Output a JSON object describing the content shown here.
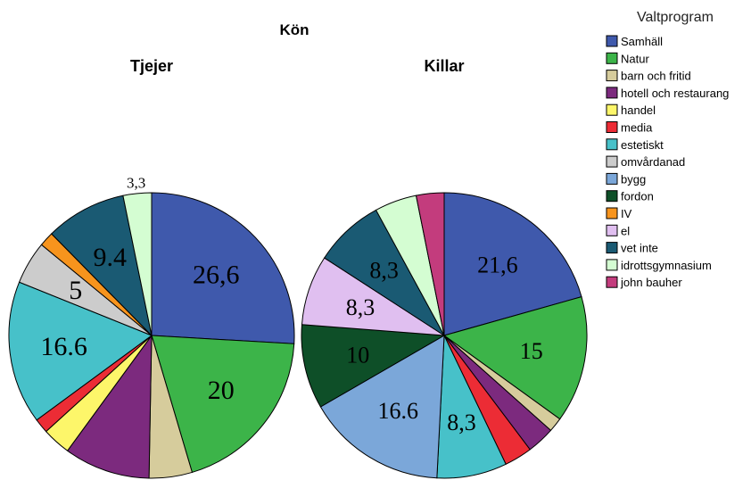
{
  "chart_data": {
    "type": "pie",
    "title": "Kön",
    "legend": {
      "title": "Valtprogram",
      "placement": "right",
      "entries": [
        {
          "name": "Samhäll",
          "color": "#3f59ac"
        },
        {
          "name": "Natur",
          "color": "#3cb449"
        },
        {
          "name": "barn och fritid",
          "color": "#d6cc9c"
        },
        {
          "name": "hotell och restaurang",
          "color": "#7c2a7e"
        },
        {
          "name": "handel",
          "color": "#fdf66a"
        },
        {
          "name": "media",
          "color": "#ec2c35"
        },
        {
          "name": "estetiskt",
          "color": "#47c1c9"
        },
        {
          "name": "omvårdanad",
          "color": "#cccccc"
        },
        {
          "name": "bygg",
          "color": "#7ba7d9"
        },
        {
          "name": "fordon",
          "color": "#0e4f28"
        },
        {
          "name": "IV",
          "color": "#f7941d"
        },
        {
          "name": "el",
          "color": "#e0bff0"
        },
        {
          "name": "vet inte",
          "color": "#1a5a73"
        },
        {
          "name": "idrottsgymnasium",
          "color": "#d4fdd2"
        },
        {
          "name": "john bauher",
          "color": "#c33c7d"
        }
      ]
    },
    "pies": [
      {
        "name": "Tjejer",
        "slices": [
          {
            "category": "Samhäll",
            "value": 26.6,
            "label": "26,6"
          },
          {
            "category": "Natur",
            "value": 20,
            "label": "20"
          },
          {
            "category": "barn och fritid",
            "value": 5,
            "label": ""
          },
          {
            "category": "hotell och restaurang",
            "value": 10,
            "label": ""
          },
          {
            "category": "handel",
            "value": 3.3,
            "label": ""
          },
          {
            "category": "media",
            "value": 1.7,
            "label": ""
          },
          {
            "category": "estetiskt",
            "value": 16.6,
            "label": "16.6"
          },
          {
            "category": "omvårdanad",
            "value": 5,
            "label": "5"
          },
          {
            "category": "IV",
            "value": 1.7,
            "label": ""
          },
          {
            "category": "vet inte",
            "value": 9.4,
            "label": "9.4"
          },
          {
            "category": "idrottsgymnasium",
            "value": 3.3,
            "label": "3,3"
          }
        ]
      },
      {
        "name": "Killar",
        "slices": [
          {
            "category": "Samhäll",
            "value": 21.6,
            "label": "21,6"
          },
          {
            "category": "Natur",
            "value": 15,
            "label": "15"
          },
          {
            "category": "barn och fritid",
            "value": 1.7,
            "label": ""
          },
          {
            "category": "hotell och restaurang",
            "value": 3.3,
            "label": ""
          },
          {
            "category": "media",
            "value": 3.3,
            "label": ""
          },
          {
            "category": "estetiskt",
            "value": 8.3,
            "label": "8,3"
          },
          {
            "category": "bygg",
            "value": 16.6,
            "label": "16.6"
          },
          {
            "category": "fordon",
            "value": 10,
            "label": "10"
          },
          {
            "category": "el",
            "value": 8.3,
            "label": "8,3"
          },
          {
            "category": "vet inte",
            "value": 8.3,
            "label": "8,3"
          },
          {
            "category": "idrottsgymnasium",
            "value": 5,
            "label": ""
          },
          {
            "category": "john bauher",
            "value": 3.3,
            "label": ""
          }
        ]
      }
    ]
  }
}
